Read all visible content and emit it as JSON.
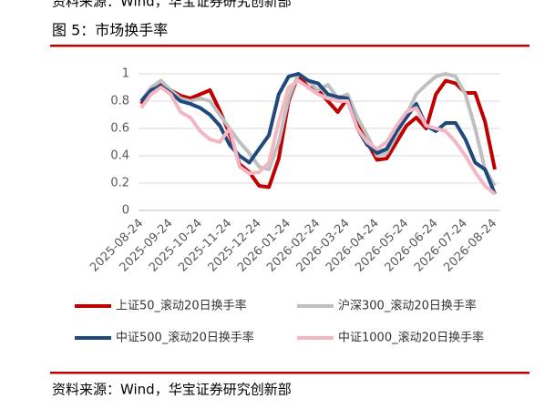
{
  "header": {
    "top_source": "资料来源：Wind，华宝证券研究创新部",
    "title": "图 5：市场换手率"
  },
  "chart_data": {
    "type": "line",
    "categories": [
      "2025-08-24",
      null,
      null,
      "2025-09-24",
      null,
      null,
      "2025-10-24",
      null,
      null,
      "2025-11-24",
      null,
      null,
      "2025-12-24",
      null,
      null,
      "2026-01-24",
      null,
      null,
      "2026-02-24",
      null,
      null,
      "2026-03-24",
      null,
      null,
      "2026-04-24",
      null,
      null,
      "2026-05-24",
      null,
      null,
      "2026-06-24",
      null,
      null,
      "2026-07-24",
      null,
      null,
      "2026-08-24"
    ],
    "series": [
      {
        "name": "上证50_滚动20日换手率",
        "color": "#c00000",
        "values": [
          0.78,
          0.88,
          0.92,
          0.88,
          0.84,
          0.82,
          0.85,
          0.88,
          0.73,
          0.56,
          0.34,
          0.28,
          0.18,
          0.17,
          0.38,
          0.8,
          0.99,
          0.9,
          0.88,
          0.8,
          0.72,
          0.82,
          0.65,
          0.5,
          0.37,
          0.38,
          0.5,
          0.62,
          0.68,
          0.6,
          0.85,
          0.95,
          0.93,
          0.86,
          0.86,
          0.65,
          0.3
        ]
      },
      {
        "name": "沪深300_滚动20日换手率",
        "color": "#bfbfbf",
        "values": [
          0.8,
          0.9,
          0.95,
          0.88,
          0.82,
          0.8,
          0.82,
          0.8,
          0.7,
          0.6,
          0.5,
          0.42,
          0.32,
          0.3,
          0.5,
          0.82,
          1.0,
          0.95,
          0.88,
          0.92,
          0.82,
          0.85,
          0.68,
          0.55,
          0.4,
          0.42,
          0.55,
          0.7,
          0.85,
          0.92,
          0.98,
          1.0,
          0.98,
          0.85,
          0.6,
          0.3,
          0.18
        ]
      },
      {
        "name": "中证500_滚动20日换手率",
        "color": "#1f497d",
        "values": [
          0.8,
          0.88,
          0.91,
          0.86,
          0.8,
          0.78,
          0.75,
          0.7,
          0.62,
          0.48,
          0.4,
          0.35,
          0.45,
          0.55,
          0.85,
          0.98,
          1.0,
          0.95,
          0.93,
          0.85,
          0.83,
          0.82,
          0.6,
          0.48,
          0.42,
          0.45,
          0.58,
          0.68,
          0.78,
          0.62,
          0.58,
          0.64,
          0.64,
          0.52,
          0.35,
          0.3,
          0.12
        ]
      },
      {
        "name": "中证1000_滚动20日换手率",
        "color": "#f4b6c2",
        "values": [
          0.75,
          0.85,
          0.9,
          0.85,
          0.72,
          0.68,
          0.58,
          0.52,
          0.5,
          0.6,
          0.32,
          0.27,
          0.28,
          0.35,
          0.65,
          0.9,
          0.95,
          0.9,
          0.85,
          0.82,
          0.8,
          0.8,
          0.6,
          0.5,
          0.45,
          0.5,
          0.62,
          0.72,
          0.75,
          0.62,
          0.6,
          0.58,
          0.5,
          0.4,
          0.28,
          0.18,
          0.12
        ]
      }
    ],
    "ylim": [
      0,
      1
    ],
    "yticks": [
      0,
      0.2,
      0.4,
      0.6,
      0.8,
      1
    ],
    "grid": true
  },
  "footer": {
    "source": "资料来源：Wind，华宝证券研究创新部"
  }
}
